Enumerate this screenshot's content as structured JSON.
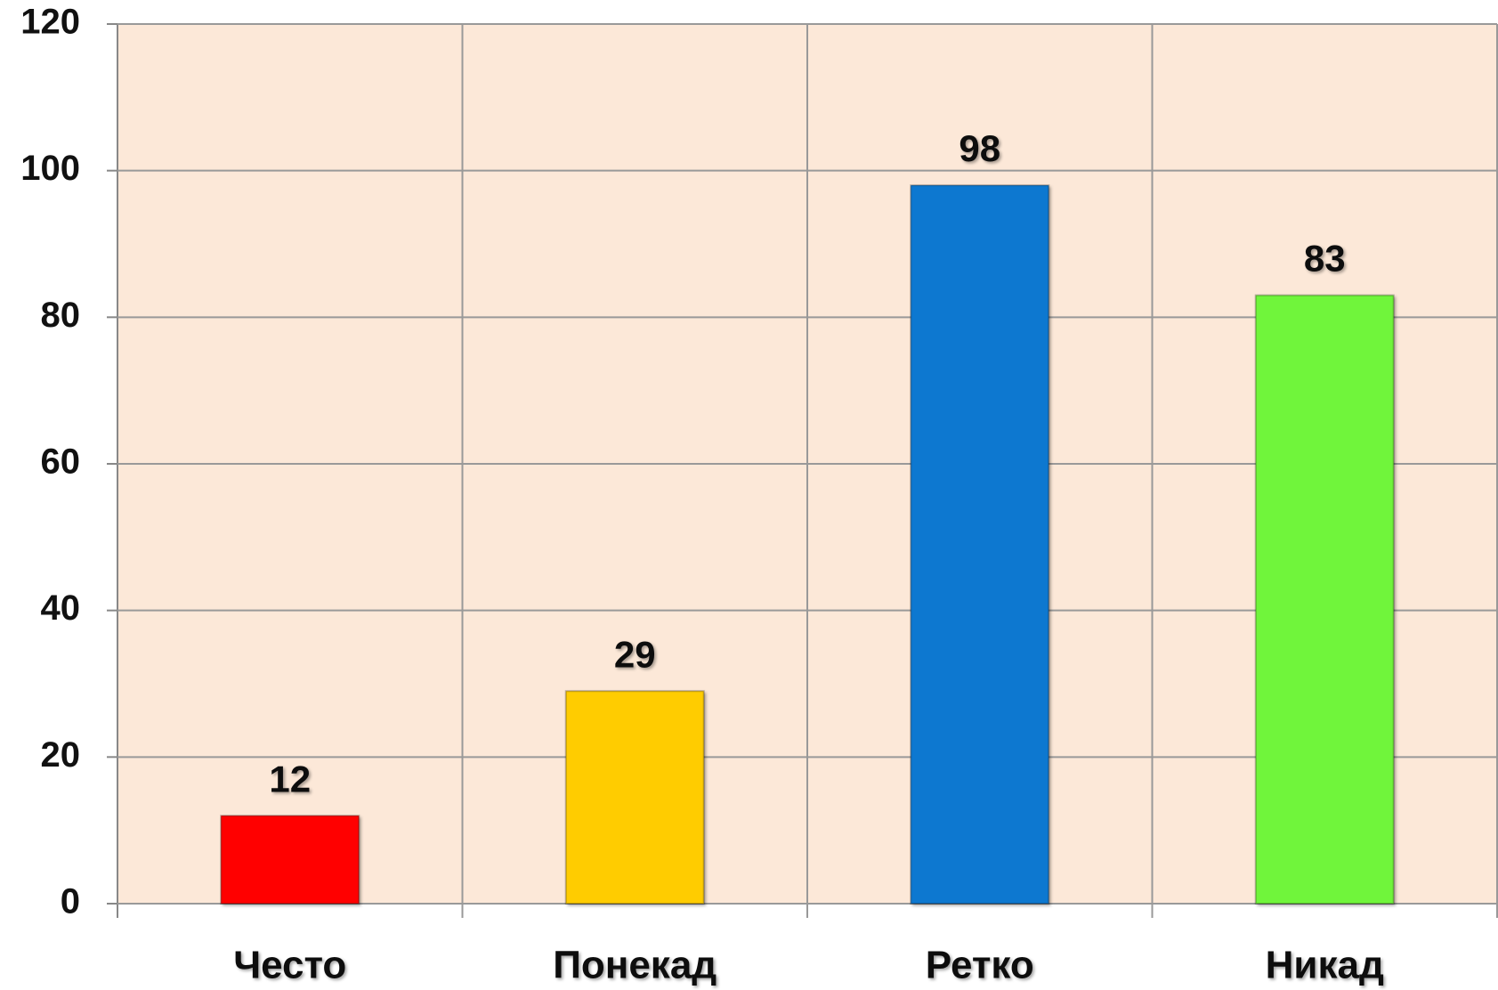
{
  "chart_data": {
    "type": "bar",
    "categories": [
      "Често",
      "Понекад",
      "Ретко",
      "Никад"
    ],
    "values": [
      12,
      29,
      98,
      83
    ],
    "colors": [
      "#ff0000",
      "#ffcc00",
      "#0a78d0",
      "#70f53a"
    ],
    "ylim": [
      0,
      120
    ],
    "yticks": [
      0,
      20,
      40,
      60,
      80,
      100,
      120
    ],
    "grid": true
  }
}
